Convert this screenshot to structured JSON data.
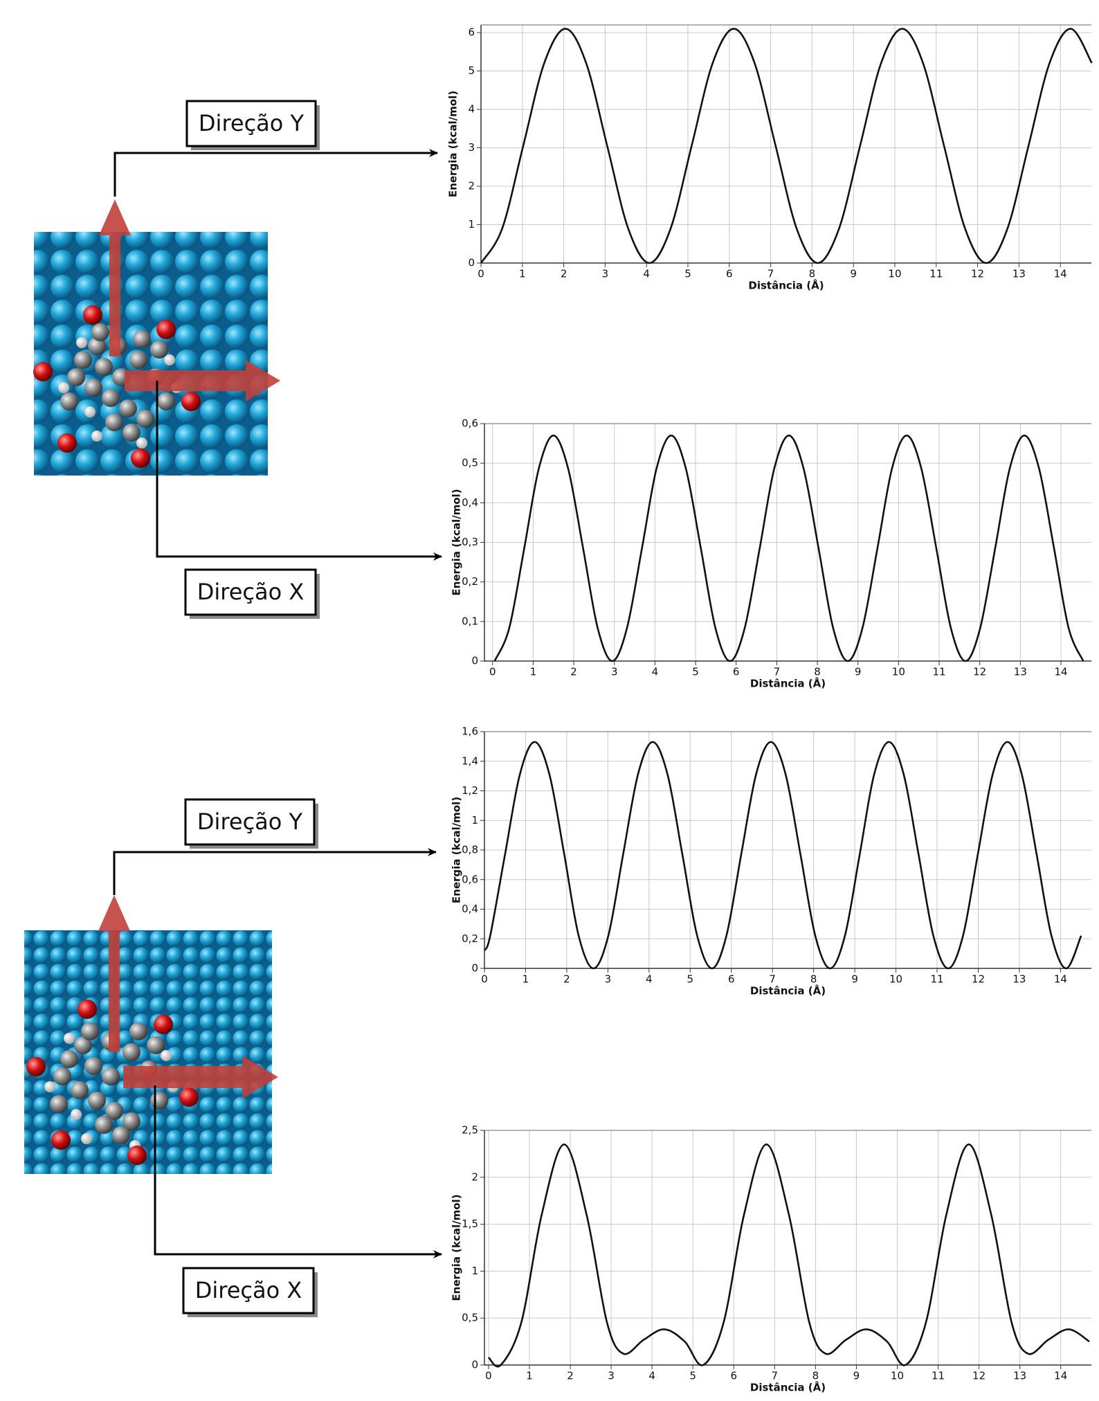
{
  "chart_data": [
    {
      "type": "line",
      "annotation": "Direção Y",
      "x_label": "Distância (Å)",
      "y_label": "Energia (kcal/mol)",
      "color": "#111111",
      "grid": true,
      "xlim": [
        0,
        14.75
      ],
      "ylim": [
        0,
        6.2
      ],
      "xticks": [
        0,
        1,
        2,
        3,
        4,
        5,
        6,
        7,
        8,
        9,
        10,
        11,
        12,
        13,
        14
      ],
      "yticks": [
        0,
        1,
        2,
        3,
        4,
        5,
        6
      ],
      "x": [
        0,
        0.51,
        1.02,
        1.53,
        2.04,
        2.54,
        3.05,
        3.56,
        4.07,
        4.58,
        5.09,
        5.6,
        6.11,
        6.61,
        7.12,
        7.63,
        8.14,
        8.65,
        9.16,
        9.67,
        10.18,
        10.68,
        11.19,
        11.7,
        12.21,
        12.72,
        13.23,
        13.74,
        14.25,
        14.76
      ],
      "values": [
        0,
        0.89,
        3.05,
        5.21,
        6.1,
        5.21,
        3.05,
        0.89,
        0,
        0.89,
        3.05,
        5.21,
        6.1,
        5.21,
        3.05,
        0.89,
        0,
        0.89,
        3.05,
        5.21,
        6.1,
        5.21,
        3.05,
        0.89,
        0,
        0.89,
        3.05,
        5.21,
        6.1,
        5.21
      ]
    },
    {
      "type": "line",
      "annotation": "Direção X",
      "x_label": "Distância (Å)",
      "y_label": "Energia (kcal/mol)",
      "color": "#111111",
      "grid": true,
      "xlim": [
        -0.2,
        14.75
      ],
      "ylim": [
        0,
        0.6
      ],
      "xticks": [
        0,
        1,
        2,
        3,
        4,
        5,
        6,
        7,
        8,
        9,
        10,
        11,
        12,
        13,
        14
      ],
      "yticks": [
        0,
        {
          "value": 0.1,
          "label": "0,1"
        },
        {
          "value": 0.2,
          "label": "0,2"
        },
        {
          "value": 0.3,
          "label": "0,3"
        },
        {
          "value": 0.4,
          "label": "0,4"
        },
        {
          "value": 0.5,
          "label": "0,5"
        },
        {
          "value": 0.6,
          "label": "0,6"
        }
      ],
      "x": [
        0.05,
        0.41,
        0.78,
        1.14,
        1.5,
        1.86,
        2.23,
        2.59,
        2.95,
        3.31,
        3.68,
        4.04,
        4.4,
        4.76,
        5.13,
        5.49,
        5.85,
        6.21,
        6.58,
        6.94,
        7.3,
        7.66,
        8.03,
        8.39,
        8.75,
        9.11,
        9.48,
        9.84,
        10.2,
        10.56,
        10.93,
        11.29,
        11.65,
        12.01,
        12.38,
        12.74,
        13.1,
        13.46,
        13.83,
        14.19,
        14.55
      ],
      "values": [
        0,
        0.083,
        0.285,
        0.487,
        0.57,
        0.487,
        0.285,
        0.083,
        0,
        0.083,
        0.285,
        0.487,
        0.57,
        0.487,
        0.285,
        0.083,
        0,
        0.083,
        0.285,
        0.487,
        0.57,
        0.487,
        0.285,
        0.083,
        0,
        0.083,
        0.285,
        0.487,
        0.57,
        0.487,
        0.285,
        0.083,
        0,
        0.083,
        0.285,
        0.487,
        0.57,
        0.487,
        0.285,
        0.083,
        0
      ]
    },
    {
      "type": "line",
      "annotation": "Direção Y",
      "x_label": "Distância (Å)",
      "y_label": "Energia (kcal/mol)",
      "color": "#111111",
      "grid": true,
      "xlim": [
        0,
        14.75
      ],
      "ylim": [
        0,
        1.6
      ],
      "xticks": [
        0,
        1,
        2,
        3,
        4,
        5,
        6,
        7,
        8,
        9,
        10,
        11,
        12,
        13,
        14
      ],
      "yticks": [
        0,
        {
          "value": 0.2,
          "label": "0,2"
        },
        {
          "value": 0.4,
          "label": "0,4"
        },
        {
          "value": 0.6,
          "label": "0,6"
        },
        {
          "value": 0.8,
          "label": "0,8"
        },
        1,
        {
          "value": 1.2,
          "label": "1,2"
        },
        {
          "value": 1.4,
          "label": "1,4"
        },
        {
          "value": 1.6,
          "label": "1,6"
        }
      ],
      "x": [
        0,
        0.14,
        0.5,
        0.86,
        1.22,
        1.58,
        1.94,
        2.29,
        2.65,
        3.01,
        3.37,
        3.73,
        4.09,
        4.45,
        4.81,
        5.17,
        5.53,
        5.88,
        6.24,
        6.6,
        6.96,
        7.32,
        7.68,
        8.04,
        8.4,
        8.76,
        9.12,
        9.47,
        9.83,
        10.19,
        10.55,
        10.91,
        11.27,
        11.63,
        11.99,
        12.35,
        12.71,
        13.06,
        13.42,
        13.78,
        14.14,
        14.5
      ],
      "values": [
        0.12,
        0.22,
        0.77,
        1.31,
        1.53,
        1.31,
        0.77,
        0.22,
        0,
        0.22,
        0.77,
        1.31,
        1.53,
        1.31,
        0.77,
        0.22,
        0,
        0.22,
        0.77,
        1.31,
        1.53,
        1.31,
        0.77,
        0.22,
        0,
        0.22,
        0.77,
        1.31,
        1.53,
        1.31,
        0.77,
        0.22,
        0,
        0.22,
        0.77,
        1.31,
        1.53,
        1.31,
        0.77,
        0.22,
        0,
        0.22
      ]
    },
    {
      "type": "line",
      "annotation": "Direção X",
      "x_label": "Distância (Å)",
      "y_label": "Energia (kcal/mol)",
      "color": "#111111",
      "grid": true,
      "xlim": [
        -0.1,
        14.75
      ],
      "ylim": [
        0,
        2.5
      ],
      "xticks": [
        0,
        1,
        2,
        3,
        4,
        5,
        6,
        7,
        8,
        9,
        10,
        11,
        12,
        13,
        14
      ],
      "yticks": [
        0,
        {
          "value": 0.5,
          "label": "0,5"
        },
        1,
        {
          "value": 1.5,
          "label": "1,5"
        },
        2,
        {
          "value": 2.5,
          "label": "2,5"
        }
      ],
      "x": [
        0,
        0.3,
        0.8,
        1.3,
        1.85,
        2.4,
        2.9,
        3.3,
        3.8,
        4.3,
        4.8,
        5.25,
        5.75,
        6.25,
        6.8,
        7.35,
        7.85,
        8.25,
        8.75,
        9.25,
        9.75,
        10.2,
        10.7,
        11.2,
        11.75,
        12.3,
        12.8,
        13.2,
        13.7,
        14.2,
        14.7
      ],
      "values": [
        0.08,
        0,
        0.45,
        1.6,
        2.35,
        1.6,
        0.45,
        0.12,
        0.27,
        0.38,
        0.25,
        0,
        0.45,
        1.6,
        2.35,
        1.6,
        0.45,
        0.12,
        0.27,
        0.38,
        0.25,
        0,
        0.45,
        1.6,
        2.35,
        1.6,
        0.45,
        0.12,
        0.27,
        0.38,
        0.25
      ]
    }
  ]
}
